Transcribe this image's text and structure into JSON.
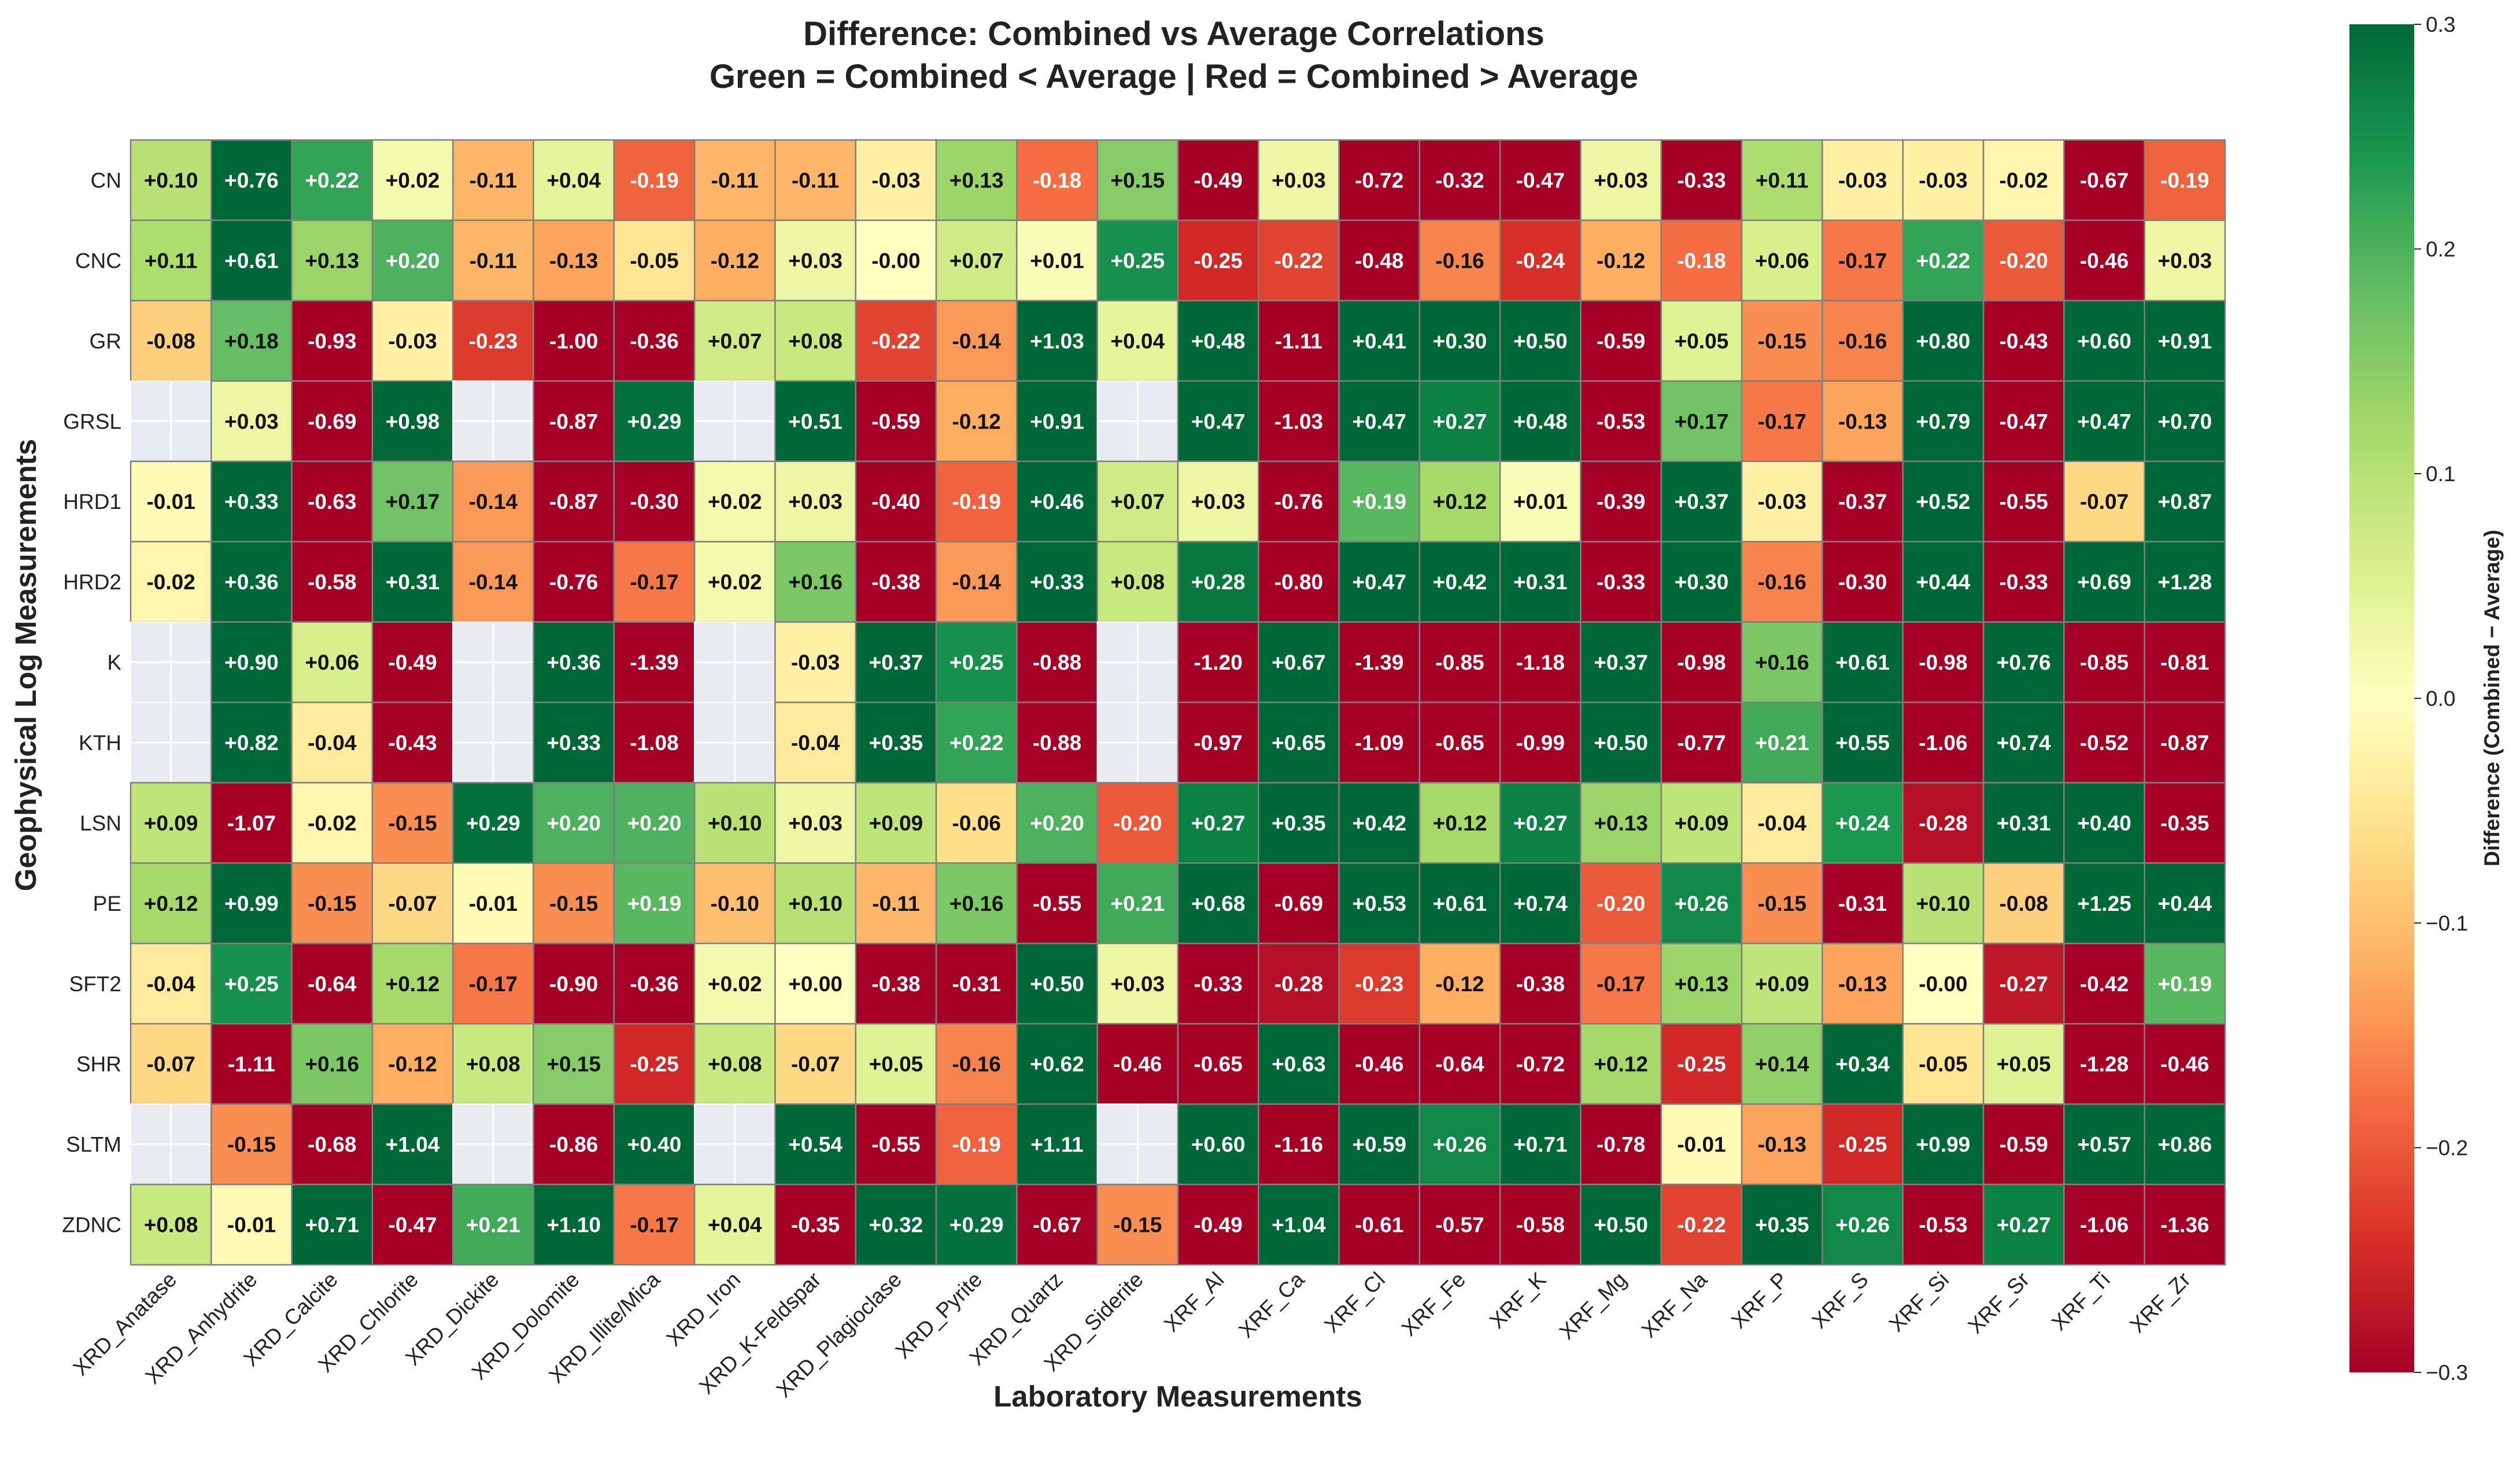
{
  "chart_data": {
    "type": "heatmap",
    "title": "Difference: Combined vs Average Correlations",
    "subtitle": "Green = Combined < Average | Red = Combined > Average",
    "xlabel": "Laboratory Measurements",
    "ylabel": "Geophysical Log Measurements",
    "colorbar_label": "Difference (Combined − Average)",
    "colorscale": "RdYlGn",
    "vmin": -0.3,
    "vmax": 0.3,
    "colorbar_ticks": [
      "0.3",
      "0.2",
      "0.1",
      "0.0",
      "−0.1",
      "−0.2",
      "−0.3"
    ],
    "missing_color": "#eaeaf2",
    "columns": [
      "XRD_Anatase",
      "XRD_Anhydrite",
      "XRD_Calcite",
      "XRD_Chlorite",
      "XRD_Dickite",
      "XRD_Dolomite",
      "XRD_Illite/Mica",
      "XRD_Iron",
      "XRD_K-Feldspar",
      "XRD_Plagioclase",
      "XRD_Pyrite",
      "XRD_Quartz",
      "XRD_Siderite",
      "XRF_Al",
      "XRF_Ca",
      "XRF_Cl",
      "XRF_Fe",
      "XRF_K",
      "XRF_Mg",
      "XRF_Na",
      "XRF_P",
      "XRF_S",
      "XRF_Si",
      "XRF_Sr",
      "XRF_Ti",
      "XRF_Zr"
    ],
    "rows": [
      "CN",
      "CNC",
      "GR",
      "GRSL",
      "HRD1",
      "HRD2",
      "K",
      "KTH",
      "LSN",
      "PE",
      "SFT2",
      "SHR",
      "SLTM",
      "ZDNC"
    ],
    "values": [
      [
        0.1,
        0.76,
        0.22,
        0.02,
        -0.11,
        0.04,
        -0.19,
        -0.11,
        -0.11,
        -0.03,
        0.13,
        -0.18,
        0.15,
        -0.49,
        0.03,
        -0.72,
        -0.32,
        -0.47,
        0.03,
        -0.33,
        0.11,
        -0.03,
        -0.03,
        -0.02,
        -0.67,
        -0.19
      ],
      [
        0.11,
        0.61,
        0.13,
        0.2,
        -0.11,
        -0.13,
        -0.05,
        -0.12,
        0.03,
        -0.0,
        0.07,
        0.01,
        0.25,
        -0.25,
        -0.22,
        -0.48,
        -0.16,
        -0.24,
        -0.12,
        -0.18,
        0.06,
        -0.17,
        0.22,
        -0.2,
        -0.46,
        0.03
      ],
      [
        -0.08,
        0.18,
        -0.93,
        -0.03,
        -0.23,
        -1.0,
        -0.36,
        0.07,
        0.08,
        -0.22,
        -0.14,
        1.03,
        0.04,
        0.48,
        -1.11,
        0.41,
        0.3,
        0.5,
        -0.59,
        0.05,
        -0.15,
        -0.16,
        0.8,
        -0.43,
        0.6,
        0.91
      ],
      [
        null,
        0.03,
        -0.69,
        0.98,
        null,
        -0.87,
        0.29,
        null,
        0.51,
        -0.59,
        -0.12,
        0.91,
        null,
        0.47,
        -1.03,
        0.47,
        0.27,
        0.48,
        -0.53,
        0.17,
        -0.17,
        -0.13,
        0.79,
        -0.47,
        0.47,
        0.7
      ],
      [
        -0.01,
        0.33,
        -0.63,
        0.17,
        -0.14,
        -0.87,
        -0.3,
        0.02,
        0.03,
        -0.4,
        -0.19,
        0.46,
        0.07,
        0.03,
        -0.76,
        0.19,
        0.12,
        0.01,
        -0.39,
        0.37,
        -0.03,
        -0.37,
        0.52,
        -0.55,
        -0.07,
        0.87
      ],
      [
        -0.02,
        0.36,
        -0.58,
        0.31,
        -0.14,
        -0.76,
        -0.17,
        0.02,
        0.16,
        -0.38,
        -0.14,
        0.33,
        0.08,
        0.28,
        -0.8,
        0.47,
        0.42,
        0.31,
        -0.33,
        0.3,
        -0.16,
        -0.3,
        0.44,
        -0.33,
        0.69,
        1.28
      ],
      [
        null,
        0.9,
        0.06,
        -0.49,
        null,
        0.36,
        -1.39,
        null,
        -0.03,
        0.37,
        0.25,
        -0.88,
        null,
        -1.2,
        0.67,
        -1.39,
        -0.85,
        -1.18,
        0.37,
        -0.98,
        0.16,
        0.61,
        -0.98,
        0.76,
        -0.85,
        -0.81
      ],
      [
        null,
        0.82,
        -0.04,
        -0.43,
        null,
        0.33,
        -1.08,
        null,
        -0.04,
        0.35,
        0.22,
        -0.88,
        null,
        -0.97,
        0.65,
        -1.09,
        -0.65,
        -0.99,
        0.5,
        -0.77,
        0.21,
        0.55,
        -1.06,
        0.74,
        -0.52,
        -0.87
      ],
      [
        0.09,
        -1.07,
        -0.02,
        -0.15,
        0.29,
        0.2,
        0.2,
        0.1,
        0.03,
        0.09,
        -0.06,
        0.2,
        -0.2,
        0.27,
        0.35,
        0.42,
        0.12,
        0.27,
        0.13,
        0.09,
        -0.04,
        0.24,
        -0.28,
        0.31,
        0.4,
        -0.35
      ],
      [
        0.12,
        0.99,
        -0.15,
        -0.07,
        -0.01,
        -0.15,
        0.19,
        -0.1,
        0.1,
        -0.11,
        0.16,
        -0.55,
        0.21,
        0.68,
        -0.69,
        0.53,
        0.61,
        0.74,
        -0.2,
        0.26,
        -0.15,
        -0.31,
        0.1,
        -0.08,
        1.25,
        0.44
      ],
      [
        -0.04,
        0.25,
        -0.64,
        0.12,
        -0.17,
        -0.9,
        -0.36,
        0.02,
        0.0,
        -0.38,
        -0.31,
        0.5,
        0.03,
        -0.33,
        -0.28,
        -0.23,
        -0.12,
        -0.38,
        -0.17,
        0.13,
        0.09,
        -0.13,
        -0.0,
        -0.27,
        -0.42,
        0.19
      ],
      [
        -0.07,
        -1.11,
        0.16,
        -0.12,
        0.08,
        0.15,
        -0.25,
        0.08,
        -0.07,
        0.05,
        -0.16,
        0.62,
        -0.46,
        -0.65,
        0.63,
        -0.46,
        -0.64,
        -0.72,
        0.12,
        -0.25,
        0.14,
        0.34,
        -0.05,
        0.05,
        -1.28,
        -0.46
      ],
      [
        null,
        -0.15,
        -0.68,
        1.04,
        null,
        -0.86,
        0.4,
        null,
        0.54,
        -0.55,
        -0.19,
        1.11,
        null,
        0.6,
        -1.16,
        0.59,
        0.26,
        0.71,
        -0.78,
        -0.01,
        -0.13,
        -0.25,
        0.99,
        -0.59,
        0.57,
        0.86
      ],
      [
        0.08,
        -0.01,
        0.71,
        -0.47,
        0.21,
        1.1,
        -0.17,
        0.04,
        -0.35,
        0.32,
        0.29,
        -0.67,
        -0.15,
        -0.49,
        1.04,
        -0.61,
        -0.57,
        -0.58,
        0.5,
        -0.22,
        0.35,
        0.26,
        -0.53,
        0.27,
        -1.06,
        -1.36
      ]
    ]
  }
}
